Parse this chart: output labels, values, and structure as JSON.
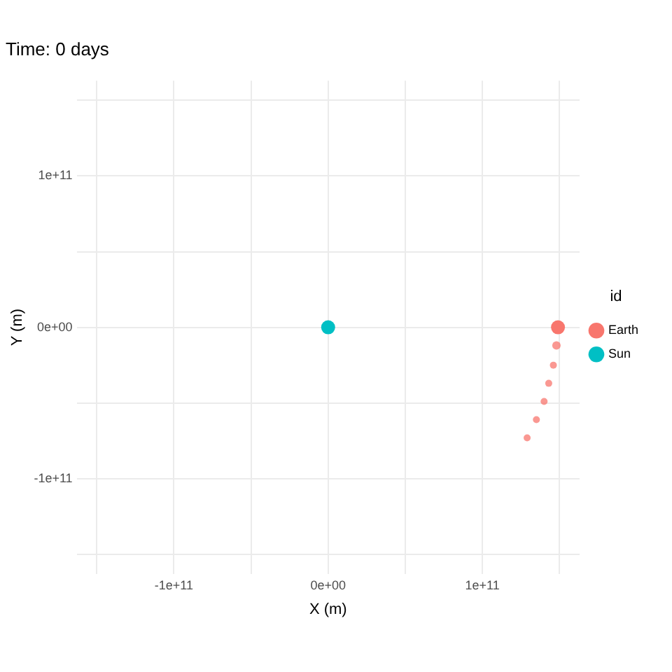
{
  "chart_data": {
    "type": "scatter",
    "title": "Time: 0 days",
    "xlabel": "X (m)",
    "ylabel": "Y (m)",
    "legend_title": "id",
    "series": [
      {
        "name": "Earth",
        "color": "#f8766d",
        "x": [
          149000000000,
          148000000000,
          146000000000,
          143000000000,
          140000000000,
          135000000000,
          129000000000
        ],
        "values": [
          0,
          -12000000000,
          -25000000000,
          -37000000000,
          -49000000000,
          -61000000000,
          -73000000000
        ],
        "sizes": [
          1,
          0.36,
          0.25,
          0.25,
          0.25,
          0.25,
          0.25
        ]
      },
      {
        "name": "Sun",
        "color": "#00bfc4",
        "x": [
          0
        ],
        "values": [
          0
        ]
      }
    ],
    "xlim": [
      -163000000000,
      163000000000
    ],
    "ylim": [
      -163000000000,
      163000000000
    ],
    "xticks": [
      {
        "value": -150000000000,
        "label": null
      },
      {
        "value": -100000000000,
        "label": "-1e+11"
      },
      {
        "value": -50000000000,
        "label": null
      },
      {
        "value": 0,
        "label": "0e+00"
      },
      {
        "value": 50000000000,
        "label": null
      },
      {
        "value": 100000000000,
        "label": "1e+11"
      },
      {
        "value": 150000000000,
        "label": null
      }
    ],
    "yticks": [
      {
        "value": -150000000000,
        "label": null
      },
      {
        "value": -100000000000,
        "label": "-1e+11"
      },
      {
        "value": -50000000000,
        "label": null
      },
      {
        "value": 0,
        "label": "0e+00"
      },
      {
        "value": 50000000000,
        "label": null
      },
      {
        "value": 100000000000,
        "label": "1e+11"
      },
      {
        "value": 150000000000,
        "label": null
      }
    ],
    "grid": true,
    "legend": "right",
    "marker": "circle"
  }
}
